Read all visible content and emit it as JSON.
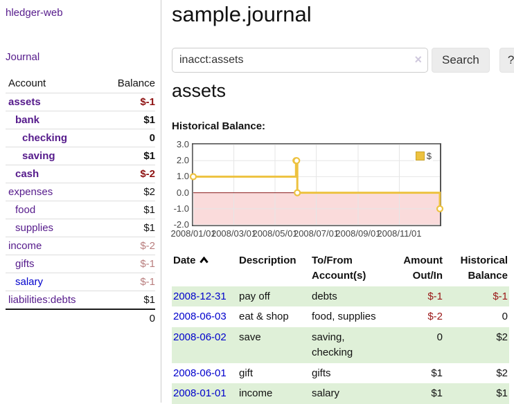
{
  "colors": {
    "accent_purple": "#551a8b",
    "link_blue": "#0000cc",
    "negative_red": "#8e1212",
    "negative_muted": "#b97e7e",
    "row_green": "#dff0d8",
    "series_gold": "#edc240"
  },
  "sidebar": {
    "brand": "hledger-web",
    "journal_link": "Journal",
    "headers": {
      "account": "Account",
      "balance": "Balance"
    },
    "accounts": [
      {
        "name": "assets",
        "balance": "$-1"
      },
      {
        "name": "bank",
        "balance": "$1"
      },
      {
        "name": "checking",
        "balance": "0"
      },
      {
        "name": "saving",
        "balance": "$1"
      },
      {
        "name": "cash",
        "balance": "$-2"
      },
      {
        "name": "expenses",
        "balance": "$2"
      },
      {
        "name": "food",
        "balance": "$1"
      },
      {
        "name": "supplies",
        "balance": "$1"
      },
      {
        "name": "income",
        "balance": "$-2"
      },
      {
        "name": "gifts",
        "balance": "$-1"
      },
      {
        "name": "salary",
        "balance": "$-1"
      },
      {
        "name": "liabilities:debts",
        "balance": "$1"
      }
    ],
    "total": "0"
  },
  "main": {
    "title": "sample.journal",
    "search": {
      "value": "inacct:assets",
      "clear_icon": "×",
      "search_button": "Search",
      "help_button": "?"
    },
    "account_heading": "assets",
    "chart_label": "Historical Balance:"
  },
  "register": {
    "headers": {
      "date": "Date",
      "description": "Description",
      "tofrom_line1": "To/From",
      "tofrom_line2": "Account(s)",
      "amount_line1": "Amount",
      "amount_line2": "Out/In",
      "balance_line1": "Historical",
      "balance_line2": "Balance"
    },
    "rows": [
      {
        "date": "2008-12-31",
        "description": "pay off",
        "accounts": "debts",
        "amount": "$-1",
        "balance": "$-1"
      },
      {
        "date": "2008-06-03",
        "description": "eat & shop",
        "accounts": "food, supplies",
        "amount": "$-2",
        "balance": "0"
      },
      {
        "date": "2008-06-02",
        "description": "save",
        "accounts": "saving, checking",
        "amount": "0",
        "balance": "$2"
      },
      {
        "date": "2008-06-01",
        "description": "gift",
        "accounts": "gifts",
        "amount": "$1",
        "balance": "$2"
      },
      {
        "date": "2008-01-01",
        "description": "income",
        "accounts": "salary",
        "amount": "$1",
        "balance": "$1"
      }
    ]
  },
  "chart_data": {
    "type": "line",
    "step": true,
    "title": "Historical Balance:",
    "xlabel": "",
    "ylabel": "",
    "legend": {
      "label": "$",
      "position": "top-right"
    },
    "series": [
      {
        "name": "$",
        "color": "#edc240",
        "points": [
          [
            "2008-01-01",
            1
          ],
          [
            "2008-06-01",
            2
          ],
          [
            "2008-06-02",
            2
          ],
          [
            "2008-06-03",
            0
          ],
          [
            "2008-12-31",
            -1
          ]
        ]
      }
    ],
    "xlim": [
      "2008-01-01",
      "2008-12-31"
    ],
    "ylim": [
      -2,
      3
    ],
    "x_ticks": [
      "2008-01-01",
      "2008-03-01",
      "2008-05-01",
      "2008-07-01",
      "2008-09-01",
      "2008-11-01"
    ],
    "x_tick_labels": [
      "2008/01/01",
      "2008/03/01",
      "2008/05/01",
      "2008/07/01",
      "2008/09/01",
      "2008/11/01"
    ],
    "y_ticks": [
      3,
      2,
      1,
      0,
      -1,
      -2
    ],
    "y_tick_labels": [
      "3.0",
      "2.0",
      "1.0",
      "0.0",
      "-1.0",
      "-2.0"
    ],
    "grid": true,
    "grid_color": "#e6e6e6",
    "zero_line_color": "#8b1a1a",
    "negative_region_color": "#fadbdb"
  }
}
